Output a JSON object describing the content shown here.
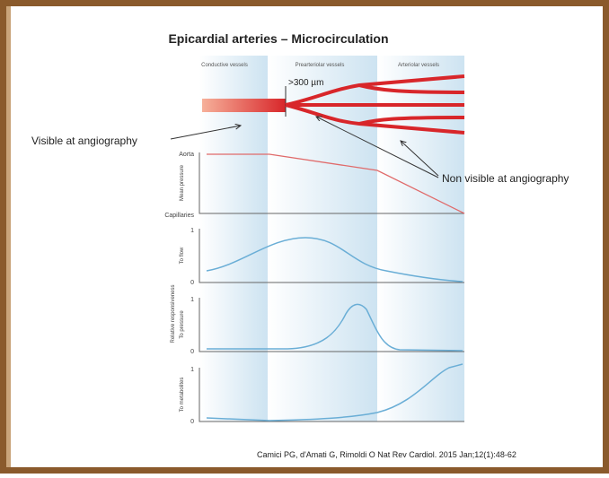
{
  "title": "Epicardial arteries – Microcirculation",
  "columns": [
    "Conductive vessels",
    "Prearteriolar vessels",
    "Arteriolar vessels"
  ],
  "vessel_size_label": ">300 µm",
  "annotations": {
    "visible": "Visible at angiography",
    "non_visible": "Non visible at angiography"
  },
  "panels": [
    {
      "y_title": "Mean pressure",
      "top_label": "Aorta",
      "bottom_label": "Capillaries"
    },
    {
      "y_title": "To flow",
      "top_label": "1",
      "bottom_label": "0"
    },
    {
      "y_title": "To pressure",
      "top_label": "1",
      "bottom_label": "0"
    },
    {
      "y_title": "To metabolites",
      "top_label": "1",
      "bottom_label": "0"
    }
  ],
  "y_group_title": "Relative responsiveness",
  "citation": "Camici PG, d'Amati G, Rimoldi O Nat Rev Cardiol. 2015 Jan;12(1):48-62"
}
